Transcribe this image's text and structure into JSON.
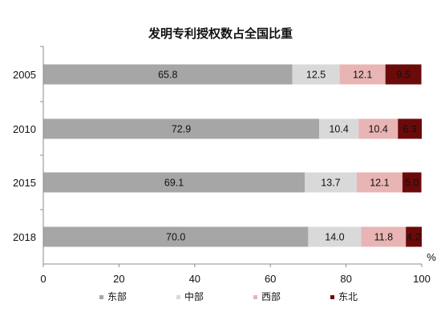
{
  "chart_data": {
    "type": "bar",
    "orientation": "horizontal",
    "stacked": true,
    "title": "发明专利授权数占全国比重",
    "categories": [
      "2005",
      "2010",
      "2015",
      "2018"
    ],
    "series": [
      {
        "name": "东部",
        "color": "#a6a6a6",
        "values": [
          65.8,
          72.9,
          69.1,
          70.0
        ]
      },
      {
        "name": "中部",
        "color": "#d9d9d9",
        "values": [
          12.5,
          10.4,
          13.7,
          14.0
        ]
      },
      {
        "name": "西部",
        "color": "#e8b4b4",
        "values": [
          12.1,
          10.4,
          12.1,
          11.8
        ]
      },
      {
        "name": "东北",
        "color": "#6b0a0a",
        "values": [
          9.5,
          6.3,
          5.0,
          4.2
        ]
      }
    ],
    "labels": [
      [
        "65.8",
        "12.5",
        "12.1",
        "9.5"
      ],
      [
        "72.9",
        "10.4",
        "10.4",
        "6.3"
      ],
      [
        "69.1",
        "13.7",
        "12.1",
        "5.0"
      ],
      [
        "70.0",
        "14.0",
        "11.8",
        "4.2"
      ]
    ],
    "label_colors": [
      "#111111",
      "#111111",
      "#111111",
      "#ffffff"
    ],
    "xlim": [
      0,
      100
    ],
    "xticks": [
      0,
      20,
      40,
      60,
      80,
      100
    ],
    "xtick_labels": [
      "0",
      "20",
      "40",
      "60",
      "80",
      "100"
    ],
    "unit": "%",
    "legend_position": "bottom",
    "grid": false
  }
}
